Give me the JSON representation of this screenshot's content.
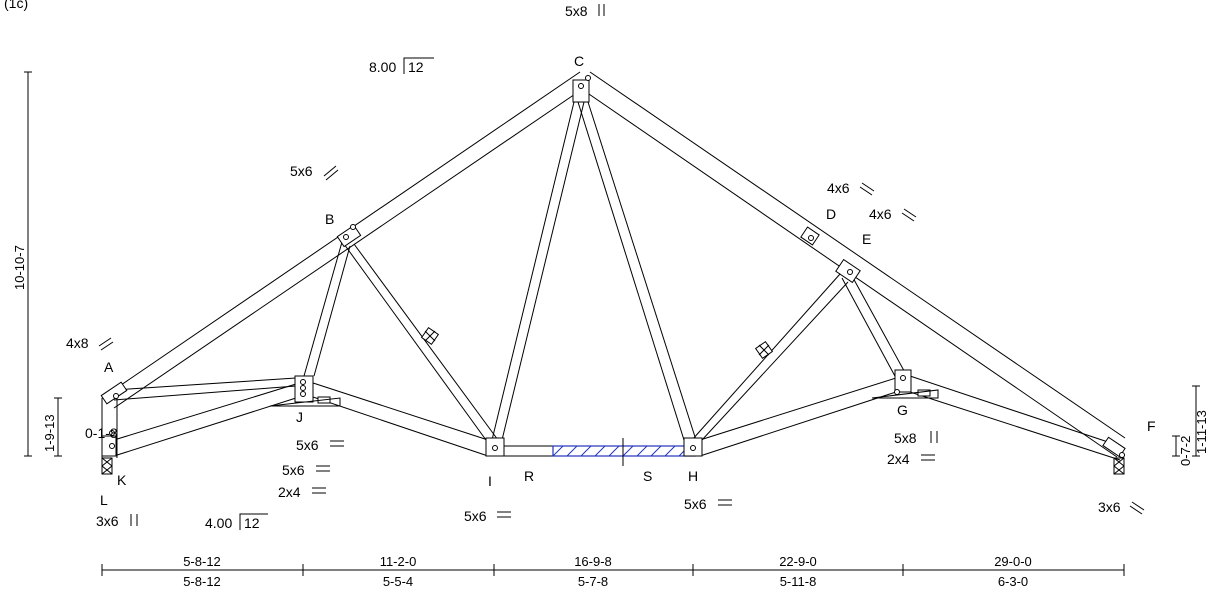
{
  "header_text": "(1c)",
  "pitch": {
    "top": {
      "rise": "8.00",
      "run": "12"
    },
    "bottom": {
      "rise": "4.00",
      "run": "12"
    }
  },
  "joints": {
    "A": "A",
    "B": "B",
    "C": "C",
    "D": "D",
    "E": "E",
    "F": "F",
    "G": "G",
    "H": "H",
    "I": "I",
    "J": "J",
    "K": "K",
    "L": "L",
    "R": "R",
    "S": "S"
  },
  "plates": {
    "c_top": "5x8",
    "b_top": "5x6",
    "a_top": "4x8",
    "d_top": "4x6",
    "e_top": "4x6",
    "j_1": "5x6",
    "j_2": "5x6",
    "j_3": "2x4",
    "l": "3x6",
    "i": "5x6",
    "h": "5x6",
    "g_1": "5x8",
    "g_2": "2x4",
    "f": "3x6"
  },
  "left_dims": {
    "overall": "10-10-7",
    "heel": "1-9-13",
    "offset": "0-1-8"
  },
  "right_dims": {
    "top": "1-11-13",
    "heel": "0-7-2"
  },
  "bottom_dims": [
    {
      "cumulative": "5-8-12",
      "segment": "5-8-12"
    },
    {
      "cumulative": "11-2-0",
      "segment": "5-5-4"
    },
    {
      "cumulative": "16-9-8",
      "segment": "5-7-8"
    },
    {
      "cumulative": "22-9-0",
      "segment": "5-11-8"
    },
    {
      "cumulative": "29-0-0",
      "segment": "6-3-0"
    }
  ]
}
